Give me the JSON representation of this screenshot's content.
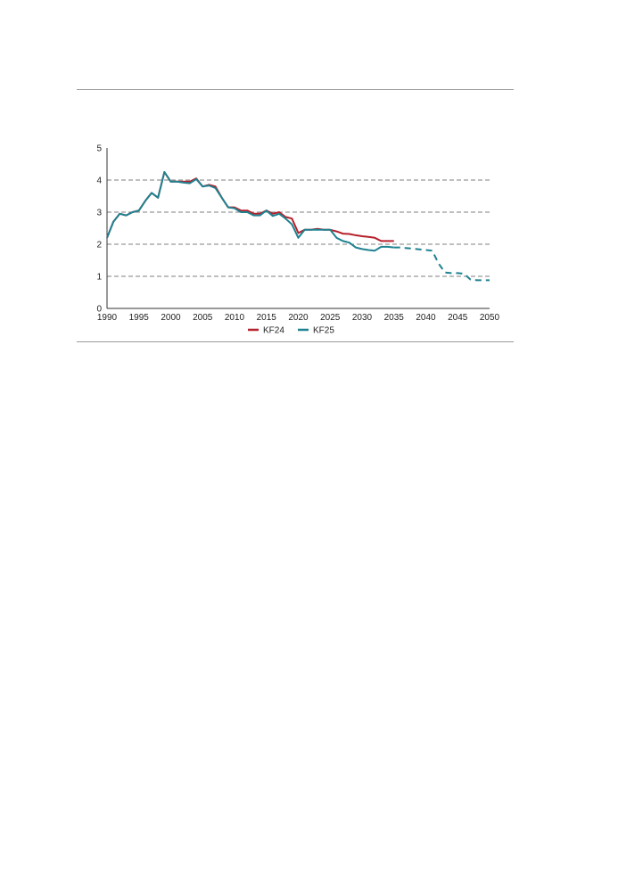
{
  "chart_data": {
    "type": "line",
    "title": "",
    "xlabel": "",
    "ylabel": "",
    "xlim": [
      1990,
      2050
    ],
    "ylim": [
      0,
      5
    ],
    "x_ticks": [
      "1990",
      "1995",
      "2000",
      "2005",
      "2010",
      "2015",
      "2020",
      "2025",
      "2030",
      "2035",
      "2040",
      "2045",
      "2050"
    ],
    "y_ticks": [
      "0",
      "1",
      "2",
      "3",
      "4",
      "5"
    ],
    "grid": "horizontal dashed",
    "legend_position": "bottom-center",
    "colors": {
      "KF24": "#b5212c",
      "KF25": "#1f8290",
      "grid": "#555555",
      "axis": "#333333"
    },
    "series": [
      {
        "name": "KF24",
        "style": "solid",
        "points": [
          [
            1990,
            2.2
          ],
          [
            1991,
            2.7
          ],
          [
            1992,
            2.95
          ],
          [
            1993,
            2.9
          ],
          [
            1994,
            3.0
          ],
          [
            1995,
            3.05
          ],
          [
            1996,
            3.35
          ],
          [
            1997,
            3.6
          ],
          [
            1998,
            3.45
          ],
          [
            1999,
            4.25
          ],
          [
            2000,
            3.95
          ],
          [
            2001,
            3.95
          ],
          [
            2002,
            3.95
          ],
          [
            2003,
            3.95
          ],
          [
            2004,
            4.05
          ],
          [
            2005,
            3.8
          ],
          [
            2006,
            3.85
          ],
          [
            2007,
            3.8
          ],
          [
            2008,
            3.45
          ],
          [
            2009,
            3.15
          ],
          [
            2010,
            3.15
          ],
          [
            2011,
            3.05
          ],
          [
            2012,
            3.05
          ],
          [
            2013,
            2.95
          ],
          [
            2014,
            2.95
          ],
          [
            2015,
            3.05
          ],
          [
            2016,
            2.95
          ],
          [
            2017,
            3.0
          ],
          [
            2018,
            2.85
          ],
          [
            2019,
            2.8
          ],
          [
            2020,
            2.35
          ],
          [
            2021,
            2.45
          ],
          [
            2022,
            2.45
          ],
          [
            2023,
            2.48
          ],
          [
            2024,
            2.45
          ],
          [
            2025,
            2.45
          ],
          [
            2026,
            2.4
          ],
          [
            2027,
            2.33
          ],
          [
            2028,
            2.32
          ],
          [
            2029,
            2.28
          ],
          [
            2030,
            2.25
          ],
          [
            2031,
            2.23
          ],
          [
            2032,
            2.2
          ],
          [
            2033,
            2.1
          ],
          [
            2034,
            2.1
          ],
          [
            2035,
            2.1
          ]
        ]
      },
      {
        "name": "KF25",
        "style": "solid",
        "points": [
          [
            1990,
            2.2
          ],
          [
            1991,
            2.7
          ],
          [
            1992,
            2.95
          ],
          [
            1993,
            2.9
          ],
          [
            1994,
            3.0
          ],
          [
            1995,
            3.05
          ],
          [
            1996,
            3.35
          ],
          [
            1997,
            3.6
          ],
          [
            1998,
            3.45
          ],
          [
            1999,
            4.25
          ],
          [
            2000,
            3.95
          ],
          [
            2001,
            3.95
          ],
          [
            2002,
            3.92
          ],
          [
            2003,
            3.9
          ],
          [
            2004,
            4.03
          ],
          [
            2005,
            3.8
          ],
          [
            2006,
            3.83
          ],
          [
            2007,
            3.75
          ],
          [
            2008,
            3.45
          ],
          [
            2009,
            3.15
          ],
          [
            2010,
            3.12
          ],
          [
            2011,
            3.0
          ],
          [
            2012,
            3.0
          ],
          [
            2013,
            2.9
          ],
          [
            2014,
            2.9
          ],
          [
            2015,
            3.05
          ],
          [
            2016,
            2.88
          ],
          [
            2017,
            2.95
          ],
          [
            2018,
            2.8
          ],
          [
            2019,
            2.62
          ],
          [
            2020,
            2.2
          ],
          [
            2021,
            2.45
          ],
          [
            2022,
            2.45
          ],
          [
            2023,
            2.45
          ],
          [
            2024,
            2.45
          ],
          [
            2025,
            2.45
          ],
          [
            2026,
            2.2
          ],
          [
            2027,
            2.1
          ],
          [
            2028,
            2.05
          ],
          [
            2029,
            1.9
          ],
          [
            2030,
            1.85
          ],
          [
            2031,
            1.82
          ],
          [
            2032,
            1.8
          ],
          [
            2033,
            1.92
          ],
          [
            2034,
            1.92
          ],
          [
            2035,
            1.9
          ]
        ]
      },
      {
        "name": "KF25",
        "style": "dashed",
        "in_legend": false,
        "points": [
          [
            2035,
            1.9
          ],
          [
            2036,
            1.9
          ],
          [
            2037,
            1.88
          ],
          [
            2038,
            1.86
          ],
          [
            2039,
            1.84
          ],
          [
            2040,
            1.82
          ],
          [
            2041,
            1.8
          ],
          [
            2042,
            1.4
          ],
          [
            2043,
            1.12
          ],
          [
            2044,
            1.1
          ],
          [
            2045,
            1.1
          ],
          [
            2046,
            1.08
          ],
          [
            2047,
            0.9
          ],
          [
            2048,
            0.88
          ],
          [
            2049,
            0.88
          ],
          [
            2050,
            0.88
          ]
        ]
      }
    ]
  }
}
